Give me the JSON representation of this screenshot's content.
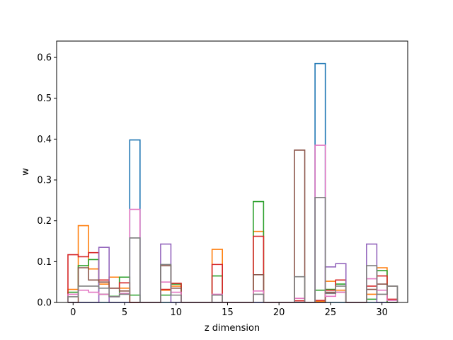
{
  "chart_data": {
    "type": "line",
    "style": "step histogram (unfilled outlines), one series per color",
    "xlabel": "z dimension",
    "ylabel": "w",
    "xlim": [
      -1.6,
      32.5
    ],
    "ylim": [
      0,
      0.64
    ],
    "x_ticks": [
      0,
      5,
      10,
      15,
      20,
      25,
      30
    ],
    "y_ticks": [
      0.0,
      0.1,
      0.2,
      0.3,
      0.4,
      0.5,
      0.6
    ],
    "x_tick_labels": [
      "0",
      "5",
      "10",
      "15",
      "20",
      "25",
      "30"
    ],
    "y_tick_labels": [
      "0.0",
      "0.1",
      "0.2",
      "0.3",
      "0.4",
      "0.5",
      "0.6"
    ],
    "grid": false,
    "legend": "none",
    "bins": [
      0,
      1,
      2,
      3,
      4,
      5,
      6,
      7,
      8,
      9,
      10,
      11,
      12,
      13,
      14,
      15,
      16,
      17,
      18,
      19,
      20,
      21,
      22,
      23,
      24,
      25,
      26,
      27,
      28,
      29,
      30,
      31
    ],
    "series": [
      {
        "color": "#1f77b4",
        "values": [
          0,
          0,
          0,
          0,
          0,
          0,
          0.398,
          0,
          0,
          0,
          0,
          0,
          0,
          0,
          0,
          0,
          0,
          0,
          0,
          0,
          0,
          0,
          0,
          0,
          0.585,
          0,
          0,
          0,
          0,
          0,
          0,
          0
        ]
      },
      {
        "color": "#ff7f0e",
        "values": [
          0.032,
          0.188,
          0.082,
          0.045,
          0.062,
          0.035,
          0,
          0,
          0,
          0.03,
          0.04,
          0,
          0,
          0,
          0.13,
          0,
          0,
          0,
          0.174,
          0,
          0,
          0,
          0.004,
          0,
          0.003,
          0.052,
          0.03,
          0,
          0,
          0.02,
          0.085,
          0
        ]
      },
      {
        "color": "#2ca02c",
        "values": [
          0.025,
          0.09,
          0.105,
          0.02,
          0.015,
          0.062,
          0.018,
          0,
          0,
          0.018,
          0.045,
          0,
          0,
          0,
          0.065,
          0,
          0,
          0,
          0.247,
          0,
          0,
          0,
          0,
          0,
          0.03,
          0.032,
          0.045,
          0,
          0,
          0.008,
          0.078,
          0
        ]
      },
      {
        "color": "#d62728",
        "values": [
          0.117,
          0.112,
          0.122,
          0.055,
          0.035,
          0.048,
          0,
          0,
          0,
          0.032,
          0.047,
          0,
          0,
          0,
          0.093,
          0,
          0,
          0,
          0.162,
          0,
          0,
          0,
          0.004,
          0,
          0.005,
          0.03,
          0.055,
          0,
          0,
          0.04,
          0.065,
          0.008
        ]
      },
      {
        "color": "#9467bd",
        "values": [
          0,
          0,
          0,
          0.135,
          0,
          0,
          0,
          0,
          0,
          0.143,
          0,
          0,
          0,
          0,
          0,
          0,
          0,
          0,
          0,
          0,
          0,
          0,
          0,
          0,
          0,
          0.087,
          0.095,
          0,
          0,
          0.143,
          0,
          0
        ]
      },
      {
        "color": "#8c564b",
        "values": [
          0,
          0.085,
          0.055,
          0.05,
          0.035,
          0.028,
          0,
          0,
          0,
          0.09,
          0.035,
          0,
          0,
          0,
          0,
          0,
          0,
          0,
          0.068,
          0,
          0,
          0,
          0.373,
          0,
          0,
          0.025,
          0.025,
          0,
          0,
          0.032,
          0.045,
          0.04
        ]
      },
      {
        "color": "#e377c2",
        "values": [
          0.02,
          0.03,
          0.025,
          0.02,
          0.014,
          0.022,
          0.228,
          0,
          0,
          0.05,
          0.025,
          0,
          0,
          0,
          0.02,
          0,
          0,
          0,
          0.028,
          0,
          0,
          0,
          0.01,
          0,
          0.385,
          0.015,
          0.025,
          0,
          0,
          0.058,
          0.03,
          0.005
        ]
      },
      {
        "color": "#7f7f7f",
        "values": [
          0.014,
          0.04,
          0.04,
          0.035,
          0.014,
          0.02,
          0.158,
          0,
          0,
          0.093,
          0.018,
          0,
          0,
          0,
          0.018,
          0,
          0,
          0,
          0.02,
          0,
          0,
          0,
          0.063,
          0,
          0.257,
          0.022,
          0.04,
          0,
          0,
          0.09,
          0.02,
          0.04
        ]
      }
    ]
  }
}
